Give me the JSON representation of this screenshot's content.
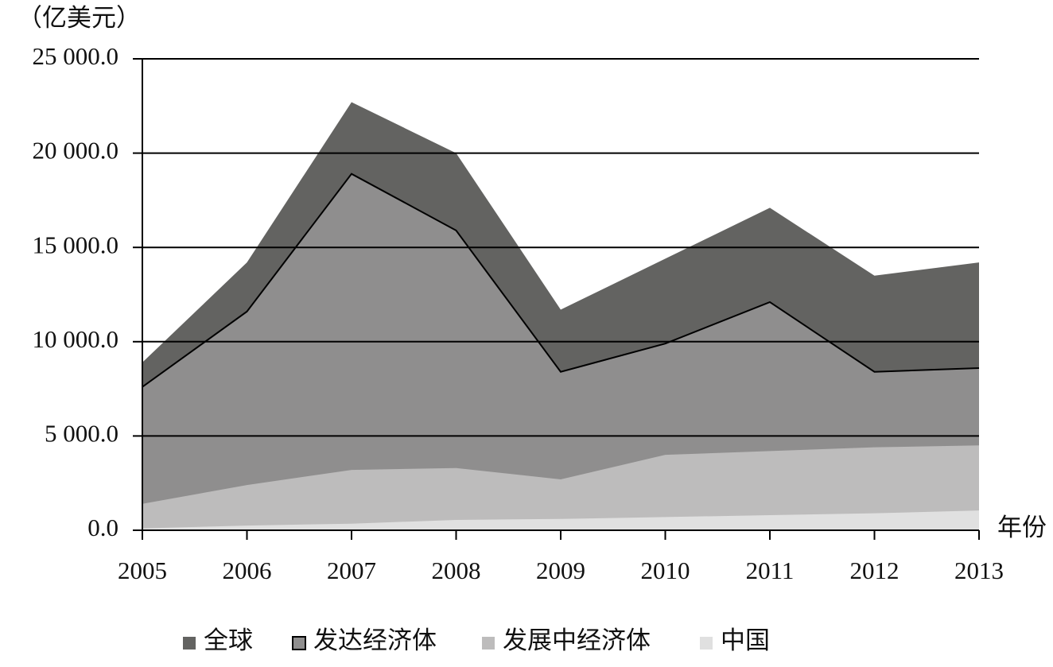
{
  "chart_data": {
    "type": "area",
    "y_label": "（亿美元）",
    "x_label": "年份",
    "categories": [
      "2005",
      "2006",
      "2007",
      "2008",
      "2009",
      "2010",
      "2011",
      "2012",
      "2013"
    ],
    "series": [
      {
        "name": "全球",
        "color": "#636361",
        "values": [
          8900,
          14200,
          22700,
          20000,
          11700,
          14400,
          17100,
          13500,
          14200
        ]
      },
      {
        "name": "发达经济体",
        "color": "#8f8e8e",
        "values": [
          7600,
          11600,
          18900,
          15900,
          8400,
          9900,
          12100,
          8400,
          8600
        ]
      },
      {
        "name": "发展中经济体",
        "color": "#bdbcbc",
        "values": [
          1400,
          2400,
          3200,
          3300,
          2700,
          4000,
          4200,
          4400,
          4500
        ]
      },
      {
        "name": "中国",
        "color": "#e0e0e0",
        "values": [
          100,
          250,
          350,
          550,
          600,
          700,
          800,
          900,
          1050
        ]
      }
    ],
    "ylim": [
      0,
      25000
    ],
    "yticks": [
      {
        "value": 0,
        "label": "0.0"
      },
      {
        "value": 5000,
        "label": "5 000.0"
      },
      {
        "value": 10000,
        "label": "10 000.0"
      },
      {
        "value": 15000,
        "label": "15 000.0"
      },
      {
        "value": 20000,
        "label": "20 000.0"
      },
      {
        "value": 25000,
        "label": "25 000.0"
      }
    ],
    "grid": true
  }
}
